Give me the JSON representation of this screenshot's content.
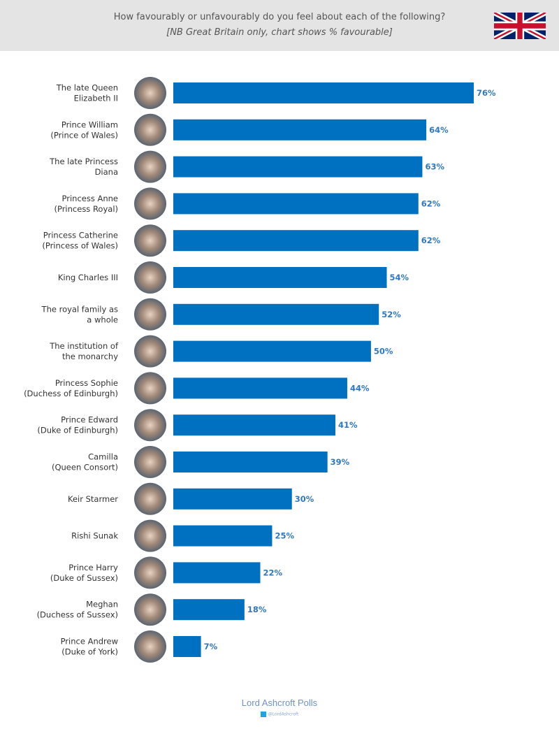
{
  "header": {
    "title": "How favourably or unfavourably do you feel about each of the following?",
    "subtitle": "[NB Great Britain only, chart shows % favourable]",
    "flag_icon": "union-jack-flag"
  },
  "chart_data": {
    "type": "bar",
    "orientation": "horizontal",
    "categories": [
      [
        "The late Queen",
        "Elizabeth II"
      ],
      [
        "Prince William",
        "(Prince of Wales)"
      ],
      [
        "The late Princess",
        "Diana"
      ],
      [
        "Princess Anne",
        "(Princess Royal)"
      ],
      [
        "Princess Catherine",
        "(Princess of Wales)"
      ],
      [
        "King Charles III"
      ],
      [
        "The royal family as",
        "a whole"
      ],
      [
        "The institution of",
        "the monarchy"
      ],
      [
        "Princess Sophie",
        "(Duchess of Edinburgh)"
      ],
      [
        "Prince Edward",
        "(Duke of Edinburgh)"
      ],
      [
        "Camilla",
        "(Queen Consort)"
      ],
      [
        "Keir Starmer"
      ],
      [
        "Rishi Sunak"
      ],
      [
        "Prince Harry",
        "(Duke of Sussex)"
      ],
      [
        "Meghan",
        "(Duchess of Sussex)"
      ],
      [
        "Prince Andrew",
        "(Duke of York)"
      ]
    ],
    "values": [
      76,
      64,
      63,
      62,
      62,
      54,
      52,
      50,
      44,
      41,
      39,
      30,
      25,
      22,
      18,
      7
    ],
    "value_suffix": "%",
    "xlim": [
      0,
      100
    ],
    "grid": false,
    "bar_color": "#0070c0",
    "label_color": "#2f78c4"
  },
  "footer": {
    "brand": "Lord Ashcroft Polls",
    "handle": "@LordAshcroft",
    "twitter_icon": "twitter-icon"
  }
}
